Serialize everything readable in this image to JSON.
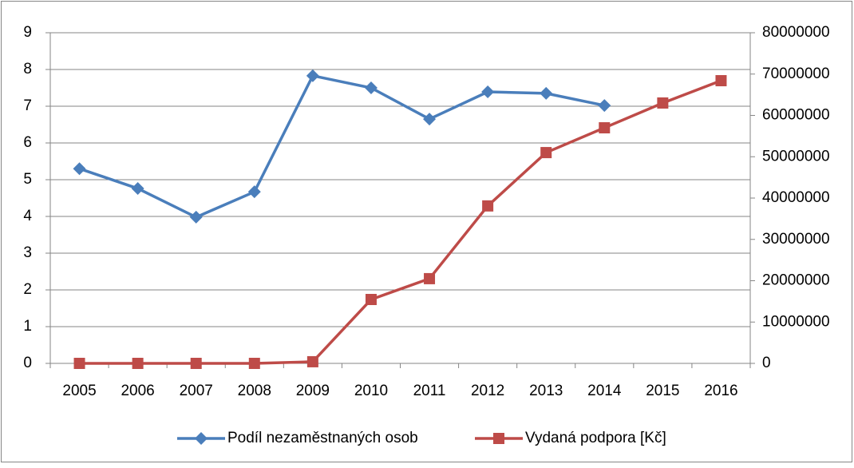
{
  "chart_data": {
    "type": "line",
    "categories": [
      "2005",
      "2006",
      "2007",
      "2008",
      "2009",
      "2010",
      "2011",
      "2012",
      "2013",
      "2014",
      "2015",
      "2016"
    ],
    "series": [
      {
        "name": "Podíl nezaměstnaných osob",
        "color": "#4a7ebb",
        "marker": "diamond",
        "values": [
          5.3,
          4.76,
          3.98,
          4.67,
          7.83,
          7.5,
          6.65,
          7.39,
          7.35,
          7.02,
          null,
          null
        ]
      },
      {
        "name": "Vydaná podpora [Kč]",
        "color": "#be4b48",
        "marker": "square",
        "axis": "y2",
        "values": [
          0,
          0,
          0,
          0,
          400000,
          15460000,
          20500000,
          38100000,
          51000000,
          57000000,
          63000000,
          68400000
        ]
      }
    ],
    "ylim": [
      0,
      9
    ],
    "yticks": [
      0,
      1,
      2,
      3,
      4,
      5,
      6,
      7,
      8,
      9
    ],
    "y2lim": [
      0,
      80000000
    ],
    "y2ticks": [
      0,
      10000000,
      20000000,
      30000000,
      40000000,
      50000000,
      60000000,
      70000000,
      80000000
    ],
    "grid": true,
    "legend": "bottom"
  }
}
